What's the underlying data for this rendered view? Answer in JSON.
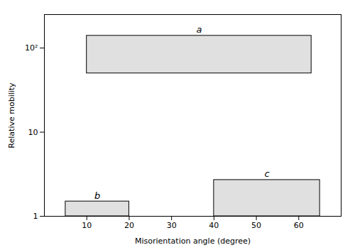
{
  "chart_data": {
    "type": "bar",
    "categories": [
      "a",
      "b",
      "c"
    ],
    "x_start": [
      10,
      5,
      40
    ],
    "x_end": [
      63,
      20,
      65
    ],
    "y_bottom": [
      50,
      1,
      1
    ],
    "y_top": [
      140,
      1.5,
      2.7
    ],
    "xlabel": "Misorientation angle (degree)",
    "ylabel": "Relative mobility",
    "xlim": [
      0,
      70
    ],
    "ylim": [
      1,
      250
    ],
    "xticks": [
      10,
      20,
      30,
      40,
      50,
      60
    ],
    "yticks": [
      1,
      10,
      {
        "value": 100,
        "label": "10²"
      }
    ],
    "log": "y",
    "color": "#e0e0e0",
    "grid": false
  }
}
